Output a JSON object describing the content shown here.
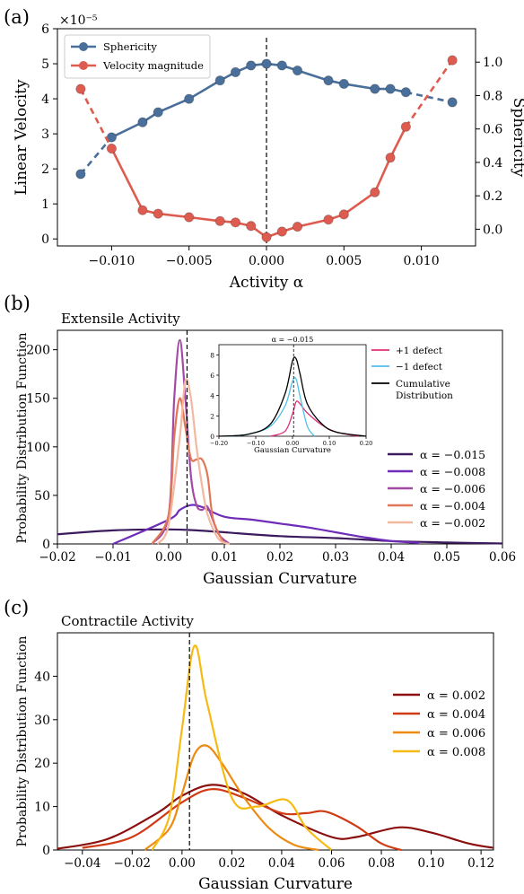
{
  "chart_data": [
    {
      "panel_label": "(a)",
      "type": "line",
      "xlabel": "Activity α",
      "ylabel_left": "Linear Velocity",
      "ylabel_right": "Sphericity",
      "y_left_offset": "×10⁻⁵",
      "xlim": [
        -0.0135,
        0.0135
      ],
      "ylim_left": [
        -0.2,
        6
      ],
      "ylim_right": [
        -0.1,
        1.2
      ],
      "x_ticks": [
        -0.01,
        -0.005,
        0.0,
        0.005,
        0.01
      ],
      "x_tick_labels": [
        "−0.010",
        "−0.005",
        "0.000",
        "0.005",
        "0.010"
      ],
      "y_left_ticks": [
        0,
        1,
        2,
        3,
        4,
        5,
        6
      ],
      "y_right_ticks": [
        0.0,
        0.2,
        0.4,
        0.6,
        0.8,
        1.0
      ],
      "y_right_tick_labels": [
        "0.0",
        "0.2",
        "0.4",
        "0.6",
        "0.8",
        "1.0"
      ],
      "vline_x": 0.0,
      "legend_position": "top-left",
      "series": [
        {
          "name": "Sphericity",
          "axis": "right",
          "color": "#4a6f9a",
          "x": [
            -0.012,
            -0.01,
            -0.008,
            -0.007,
            -0.005,
            -0.003,
            -0.002,
            -0.001,
            0.0,
            0.001,
            0.002,
            0.004,
            0.005,
            0.007,
            0.008,
            0.009,
            0.012
          ],
          "y": [
            0.33,
            0.55,
            0.64,
            0.7,
            0.78,
            0.89,
            0.94,
            0.98,
            0.99,
            0.98,
            0.95,
            0.89,
            0.87,
            0.84,
            0.84,
            0.82,
            0.76
          ]
        },
        {
          "name": "Velocity magnitude",
          "axis": "left",
          "color": "#de5c4f",
          "x": [
            -0.012,
            -0.01,
            -0.008,
            -0.007,
            -0.005,
            -0.003,
            -0.002,
            -0.001,
            0.0,
            0.001,
            0.002,
            0.004,
            0.005,
            0.007,
            0.008,
            0.009,
            0.012
          ],
          "y": [
            4.28,
            2.58,
            0.82,
            0.72,
            0.62,
            0.51,
            0.47,
            0.37,
            0.05,
            0.21,
            0.35,
            0.55,
            0.7,
            1.33,
            2.32,
            3.2,
            5.1
          ]
        }
      ]
    },
    {
      "panel_label": "(b)",
      "type": "line",
      "title": "Extensile Activity",
      "xlabel": "Gaussian Curvature",
      "ylabel": "Probability Distribution Function",
      "xlim": [
        -0.02,
        0.06
      ],
      "ylim": [
        0,
        220
      ],
      "x_ticks": [
        -0.02,
        -0.01,
        0.0,
        0.01,
        0.02,
        0.03,
        0.04,
        0.05,
        0.06
      ],
      "x_tick_labels": [
        "−0.02",
        "−0.01",
        "0.00",
        "0.01",
        "0.02",
        "0.03",
        "0.04",
        "0.05",
        "0.06"
      ],
      "y_ticks": [
        0,
        50,
        100,
        150,
        200
      ],
      "vline_x": 0.0033,
      "legend_position": "lower-right",
      "series": [
        {
          "name": "α = −0.015",
          "color": "#3b1a5e",
          "x": [
            -0.02,
            -0.01,
            0.0,
            0.005,
            0.01,
            0.02,
            0.03,
            0.04,
            0.05,
            0.06
          ],
          "y": [
            10,
            14,
            15,
            14,
            12,
            8,
            6,
            3,
            1.5,
            0.5
          ]
        },
        {
          "name": "α = −0.008",
          "color": "#6f2cb8",
          "x": [
            -0.01,
            0.0,
            0.002,
            0.004,
            0.006,
            0.01,
            0.015,
            0.02,
            0.025,
            0.03,
            0.035,
            0.04,
            0.045
          ],
          "y": [
            0,
            25,
            35,
            40,
            38,
            28,
            25,
            21,
            17,
            12,
            7,
            3,
            1
          ]
        },
        {
          "name": "α = −0.006",
          "color": "#a24ba6",
          "x": [
            -0.003,
            0.0,
            0.001,
            0.002,
            0.003,
            0.004,
            0.005,
            0.006,
            0.007,
            0.009,
            0.011
          ],
          "y": [
            0,
            30,
            150,
            210,
            150,
            70,
            40,
            35,
            38,
            10,
            0
          ]
        },
        {
          "name": "α = −0.004",
          "color": "#e07858",
          "x": [
            -0.003,
            0.0,
            0.001,
            0.002,
            0.003,
            0.004,
            0.005,
            0.006,
            0.007,
            0.008,
            0.01
          ],
          "y": [
            0,
            30,
            110,
            150,
            120,
            88,
            87,
            87,
            70,
            25,
            0
          ]
        },
        {
          "name": "α = −0.002",
          "color": "#f2b8a0",
          "x": [
            -0.002,
            0.0,
            0.002,
            0.003,
            0.004,
            0.005,
            0.006,
            0.007,
            0.009,
            0.011
          ],
          "y": [
            0,
            20,
            110,
            168,
            150,
            100,
            60,
            30,
            5,
            0
          ]
        }
      ],
      "inset": {
        "title": "α = −0.015",
        "xlabel": "Gaussian Curvature",
        "xlim": [
          -0.2,
          0.2
        ],
        "x_tick_labels": [
          "−0.20",
          "−0.10",
          "0.00",
          "0.10",
          "0.20"
        ],
        "y_ticks": [
          0,
          2,
          4,
          6,
          8
        ],
        "legend": [
          "+1 defect",
          "−1 defect",
          "Cumulative Distribution"
        ],
        "series": [
          {
            "name": "+1 defect",
            "color": "#e0307a",
            "x": [
              -0.06,
              -0.02,
              0.0,
              0.01,
              0.02,
              0.04,
              0.08,
              0.12,
              0.18
            ],
            "y": [
              0,
              0.5,
              2.2,
              3.4,
              3.2,
              2.3,
              1.1,
              0.4,
              0
            ]
          },
          {
            "name": "−1 defect",
            "color": "#4fc0e8",
            "x": [
              -0.18,
              -0.12,
              -0.06,
              -0.02,
              0.0,
              0.01,
              0.02,
              0.04,
              0.06
            ],
            "y": [
              0,
              0.2,
              1.0,
              3.0,
              5.4,
              5.6,
              4.0,
              1.0,
              0
            ]
          },
          {
            "name": "Cumulative Distribution",
            "color": "#000000",
            "x": [
              -0.2,
              -0.12,
              -0.06,
              -0.02,
              0.0,
              0.01,
              0.02,
              0.04,
              0.08,
              0.12,
              0.2
            ],
            "y": [
              0,
              0.2,
              1.2,
              4.2,
              7.4,
              7.6,
              6.2,
              3.2,
              1.2,
              0.4,
              0
            ]
          }
        ]
      }
    },
    {
      "panel_label": "(c)",
      "type": "line",
      "title": "Contractile Activity",
      "xlabel": "Gaussian Curvature",
      "ylabel": "Probability Distribution Function",
      "xlim": [
        -0.05,
        0.125
      ],
      "ylim": [
        0,
        50
      ],
      "x_ticks": [
        -0.04,
        -0.02,
        0.0,
        0.02,
        0.04,
        0.06,
        0.08,
        0.1,
        0.12
      ],
      "x_tick_labels": [
        "−0.04",
        "−0.02",
        "0.00",
        "0.02",
        "0.04",
        "0.06",
        "0.08",
        "0.10",
        "0.12"
      ],
      "y_ticks": [
        0,
        10,
        20,
        30,
        40
      ],
      "vline_x": 0.003,
      "legend_position": "right",
      "series": [
        {
          "name": "α = 0.002",
          "color": "#8b0f0f",
          "x": [
            -0.05,
            -0.03,
            -0.01,
            0.0,
            0.012,
            0.025,
            0.04,
            0.06,
            0.07,
            0.087,
            0.1,
            0.115,
            0.125
          ],
          "y": [
            0.3,
            2.5,
            8.5,
            12.5,
            15,
            13,
            8,
            3,
            3,
            5.2,
            4,
            1.5,
            0.5
          ]
        },
        {
          "name": "α = 0.004",
          "color": "#d03a14",
          "x": [
            -0.04,
            -0.02,
            0.0,
            0.012,
            0.025,
            0.04,
            0.05,
            0.058,
            0.07,
            0.08,
            0.088
          ],
          "y": [
            0.5,
            3,
            11,
            14,
            12,
            8.5,
            8.5,
            8.8,
            5.5,
            1.5,
            0
          ]
        },
        {
          "name": "α = 0.006",
          "color": "#ec8a12",
          "x": [
            -0.015,
            -0.005,
            0.0,
            0.005,
            0.01,
            0.016,
            0.025,
            0.035,
            0.045,
            0.055
          ],
          "y": [
            0,
            5,
            13,
            22,
            24,
            20,
            12,
            5,
            1.2,
            0
          ]
        },
        {
          "name": "α = 0.008",
          "color": "#f6bb12",
          "x": [
            -0.012,
            -0.005,
            0.0,
            0.005,
            0.01,
            0.02,
            0.03,
            0.042,
            0.05,
            0.06
          ],
          "y": [
            0,
            8,
            28,
            47,
            34,
            12,
            10,
            11.5,
            5,
            0
          ]
        }
      ]
    }
  ]
}
